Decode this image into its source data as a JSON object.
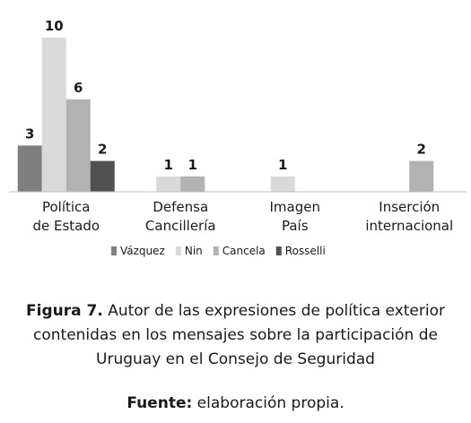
{
  "chart_data": {
    "type": "bar",
    "title": "",
    "xlabel": "",
    "ylabel": "",
    "ylim": [
      0,
      10
    ],
    "grid": false,
    "legend_position": "bottom",
    "categories": [
      [
        "Política",
        "de Estado"
      ],
      [
        "Defensa",
        "Cancillería"
      ],
      [
        "Imagen",
        "País"
      ],
      [
        "Inserción",
        "internacional"
      ]
    ],
    "series": [
      {
        "name": "Vázquez",
        "color": "#7f7f7f",
        "values": [
          3,
          null,
          null,
          null
        ]
      },
      {
        "name": "Nin",
        "color": "#d9d9d9",
        "values": [
          10,
          1,
          1,
          null
        ]
      },
      {
        "name": "Cancela",
        "color": "#b2b2b2",
        "values": [
          6,
          1,
          null,
          2
        ]
      },
      {
        "name": "Rosselli",
        "color": "#505050",
        "values": [
          2,
          null,
          null,
          null
        ]
      }
    ]
  },
  "caption": {
    "figure_label": "Figura 7.",
    "figure_text_line1": " Autor de las expresiones de política exterior",
    "figure_text_line2": "contenidas en los mensajes sobre la participación de",
    "figure_text_line3": "Uruguay en el Consejo de Seguridad",
    "source_label": "Fuente:",
    "source_text": " elaboración propia."
  }
}
